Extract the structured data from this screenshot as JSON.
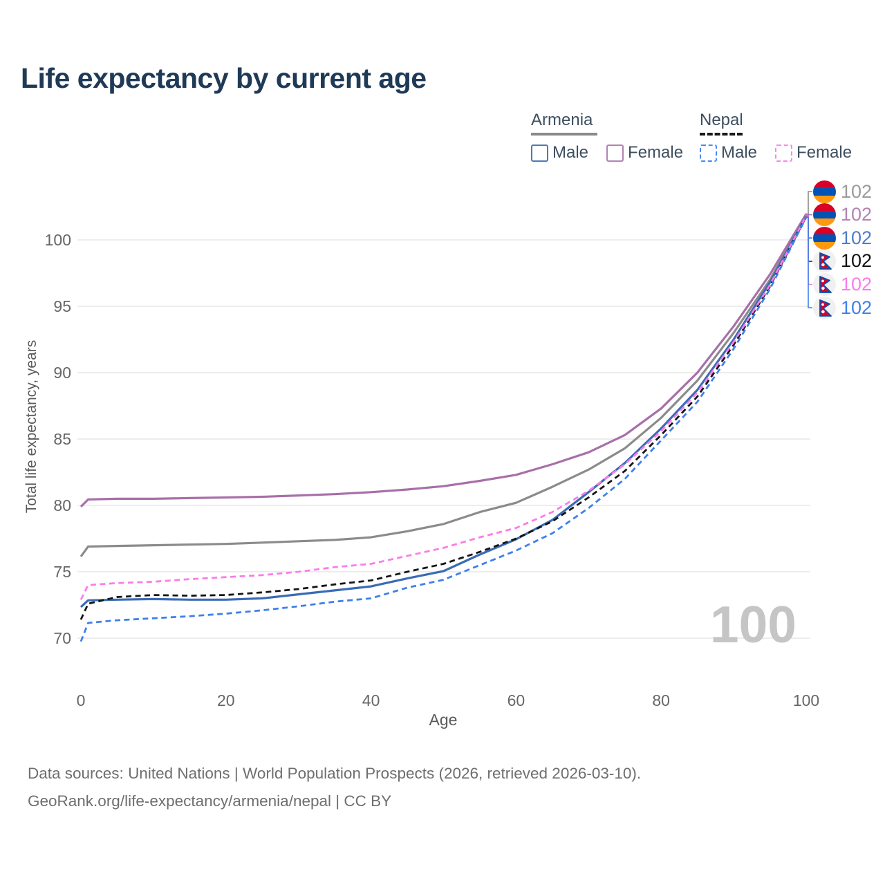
{
  "page": {
    "title": "Life expectancy by current age",
    "watermark_age": "100"
  },
  "legend": {
    "groups": [
      {
        "name": "Armenia",
        "line_style": "solid",
        "underline_color": "#8a8a8a",
        "items": [
          {
            "label": "Male",
            "color": "#4a7ab8"
          },
          {
            "label": "Female",
            "color": "#b481b4"
          }
        ]
      },
      {
        "name": "Nepal",
        "line_style": "dashed",
        "underline_color": "#1a1a1a",
        "items": [
          {
            "label": "Male",
            "color": "#4a8af0"
          },
          {
            "label": "Female",
            "color": "#fa85ea"
          }
        ]
      }
    ]
  },
  "axes": {
    "x_label": "Age",
    "y_label": "Total life expectancy, years"
  },
  "footer": {
    "line1": "Data sources: United Nations | World Population Prospects (2026, retrieved 2026-03-10).",
    "line2": "GeoRank.org/life-expectancy/armenia/nepal | CC BY"
  },
  "chart_data": {
    "type": "line",
    "title": "Life expectancy by current age",
    "xlabel": "Age",
    "ylabel": "Total life expectancy, years",
    "xlim": [
      0,
      100
    ],
    "ylim": [
      68,
      103
    ],
    "xticks": [
      0,
      20,
      40,
      60,
      80,
      100
    ],
    "yticks": [
      70,
      75,
      80,
      85,
      90,
      95,
      100
    ],
    "grid": "horizontal-only",
    "legend_position": "top-right",
    "x": [
      0,
      1,
      5,
      10,
      15,
      20,
      25,
      30,
      35,
      40,
      45,
      50,
      55,
      60,
      65,
      70,
      75,
      80,
      85,
      90,
      95,
      100
    ],
    "series": [
      {
        "name": "Armenia Both sexes",
        "slug": "armenia-both",
        "country": "Armenia",
        "sex": "Both",
        "color": "#8b8b8b",
        "label_color": "#9b9b9b",
        "dash": "solid",
        "flag": "armenia",
        "end_label": "102",
        "values": [
          76.15,
          76.9,
          76.95,
          77.0,
          77.05,
          77.1,
          77.2,
          77.3,
          77.4,
          77.6,
          78.05,
          78.6,
          79.5,
          80.2,
          81.4,
          82.7,
          84.3,
          86.6,
          89.4,
          93.0,
          97.0,
          101.85
        ]
      },
      {
        "name": "Armenia Female",
        "slug": "armenia-female",
        "country": "Armenia",
        "sex": "Female",
        "color": "#a86fa8",
        "label_color": "#b384b3",
        "dash": "solid",
        "flag": "armenia",
        "end_label": "102",
        "values": [
          79.9,
          80.45,
          80.5,
          80.5,
          80.55,
          80.6,
          80.65,
          80.75,
          80.85,
          81.0,
          81.2,
          81.45,
          81.85,
          82.3,
          83.1,
          84.0,
          85.3,
          87.3,
          90.0,
          93.5,
          97.4,
          101.95
        ]
      },
      {
        "name": "Armenia Male",
        "slug": "armenia-male",
        "country": "Armenia",
        "sex": "Male",
        "color": "#3a6bb5",
        "label_color": "#4d7dc9",
        "dash": "solid",
        "flag": "armenia",
        "end_label": "102",
        "values": [
          72.35,
          72.85,
          72.9,
          72.95,
          72.9,
          72.9,
          73.0,
          73.3,
          73.6,
          73.9,
          74.5,
          75.05,
          76.3,
          77.45,
          78.9,
          81.0,
          83.2,
          85.8,
          88.7,
          92.5,
          96.8,
          101.8
        ]
      },
      {
        "name": "Nepal Both sexes",
        "slug": "nepal-both",
        "country": "Nepal",
        "sex": "Both",
        "color": "#141414",
        "label_color": "#111111",
        "dash": "dashed",
        "flag": "nepal",
        "end_label": "102",
        "values": [
          71.4,
          72.6,
          73.1,
          73.25,
          73.2,
          73.25,
          73.45,
          73.7,
          74.05,
          74.35,
          75.0,
          75.6,
          76.5,
          77.5,
          78.8,
          80.6,
          82.6,
          85.3,
          88.2,
          92.1,
          96.5,
          101.75
        ]
      },
      {
        "name": "Nepal Female",
        "slug": "nepal-female",
        "country": "Nepal",
        "sex": "Female",
        "color": "#fb7ce8",
        "label_color": "#fb7ce8",
        "dash": "dashed",
        "flag": "nepal",
        "end_label": "102",
        "values": [
          72.9,
          74.0,
          74.15,
          74.25,
          74.45,
          74.6,
          74.75,
          75.0,
          75.35,
          75.6,
          76.2,
          76.8,
          77.6,
          78.3,
          79.5,
          81.1,
          83.1,
          85.6,
          88.5,
          92.3,
          96.6,
          101.8
        ]
      },
      {
        "name": "Nepal Male",
        "slug": "nepal-male",
        "country": "Nepal",
        "sex": "Male",
        "color": "#3f80ea",
        "label_color": "#3f80ea",
        "dash": "dashed",
        "flag": "nepal",
        "end_label": "102",
        "values": [
          69.75,
          71.15,
          71.35,
          71.5,
          71.65,
          71.85,
          72.1,
          72.4,
          72.75,
          73.0,
          73.8,
          74.4,
          75.5,
          76.6,
          77.9,
          79.8,
          82.0,
          84.9,
          87.8,
          91.8,
          96.3,
          101.7
        ]
      }
    ]
  }
}
